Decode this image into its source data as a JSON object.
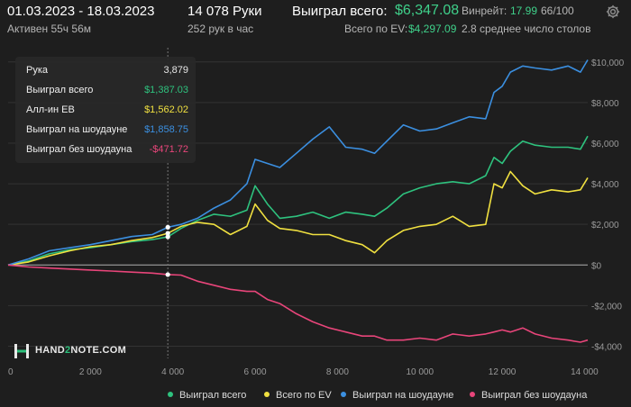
{
  "header": {
    "date_range": "01.03.2023 - 18.03.2023",
    "hands": "14 078 Руки",
    "won_total_label": "Выиграл всего:",
    "won_total_value": "$6,347.08",
    "winrate_label": "Винрейт:",
    "winrate_value": "17.99",
    "winrate_hands": "66/100",
    "active_time": "Активен 55ч 56м",
    "hands_per_hour": "252 рук в час",
    "ev_label": "Всего по EV:",
    "ev_value": "$4,297.09",
    "avg_tables": "2.8 среднее число столов",
    "settings_icon": "gear-icon"
  },
  "tooltip": {
    "rows": [
      {
        "label": "Рука",
        "value": "3,879",
        "color": "#e6e6e6"
      },
      {
        "label": "Выиграл всего",
        "value": "$1,387.03",
        "color": "#2ec27e"
      },
      {
        "label": "Алл-ин EB",
        "value": "$1,562.02",
        "color": "#f0e040"
      },
      {
        "label": "Выиграл на шоудауне",
        "value": "$1,858.75",
        "color": "#3b8fe0"
      },
      {
        "label": "Выиграл без шоудауна",
        "value": "-$471.72",
        "color": "#e8457a"
      }
    ]
  },
  "logo": {
    "part1": "HAND",
    "part2": "2",
    "part3": "NOTE.COM"
  },
  "legend": [
    {
      "label": "Выиграл всего",
      "color": "#2ec27e"
    },
    {
      "label": "Всего по EV",
      "color": "#f0e040"
    },
    {
      "label": "Выиграл на шоудауне",
      "color": "#3b8fe0"
    },
    {
      "label": "Выиграл без шоудауна",
      "color": "#e8457a"
    }
  ],
  "chart_data": {
    "type": "line",
    "xlim": [
      0,
      14078
    ],
    "ylim": [
      -4600,
      10700
    ],
    "x_ticks": [
      0,
      2000,
      4000,
      6000,
      8000,
      10000,
      12000,
      14000
    ],
    "x_tick_labels": [
      "0",
      "2 000",
      "4 000",
      "6 000",
      "8 000",
      "10 000",
      "12 000",
      "14 000"
    ],
    "y_ticks": [
      -4000,
      -2000,
      0,
      2000,
      4000,
      6000,
      8000,
      10000
    ],
    "y_tick_labels": [
      "-$4,000",
      "-$2,000",
      "$0",
      "$2,000",
      "$4,000",
      "$6,000",
      "$8,000",
      "$10,000"
    ],
    "grid": true,
    "legend_position": "bottom",
    "hover_x": 3879,
    "series": [
      {
        "name": "Выиграл всего",
        "color": "#2ec27e",
        "x": [
          0,
          500,
          1000,
          1500,
          2000,
          2500,
          3000,
          3500,
          3879,
          4200,
          4600,
          5000,
          5400,
          5800,
          6000,
          6300,
          6600,
          7000,
          7400,
          7800,
          8200,
          8600,
          8900,
          9200,
          9600,
          10000,
          10400,
          10800,
          11200,
          11600,
          11800,
          12000,
          12200,
          12500,
          12800,
          13200,
          13600,
          13900,
          14078
        ],
        "y": [
          0,
          200,
          550,
          750,
          850,
          1000,
          1150,
          1250,
          1387,
          1800,
          2200,
          2500,
          2400,
          2700,
          3900,
          3000,
          2300,
          2400,
          2600,
          2300,
          2600,
          2500,
          2400,
          2800,
          3500,
          3800,
          4000,
          4100,
          4000,
          4400,
          5300,
          5000,
          5600,
          6100,
          5900,
          5800,
          5800,
          5700,
          6347
        ]
      },
      {
        "name": "Всего по EV",
        "color": "#f0e040",
        "x": [
          0,
          500,
          1000,
          1500,
          2000,
          2500,
          3000,
          3500,
          3879,
          4200,
          4600,
          5000,
          5400,
          5800,
          6000,
          6300,
          6600,
          7000,
          7400,
          7800,
          8200,
          8600,
          8900,
          9200,
          9600,
          10000,
          10400,
          10800,
          11200,
          11600,
          11800,
          12000,
          12200,
          12500,
          12800,
          13200,
          13600,
          13900,
          14078
        ],
        "y": [
          0,
          150,
          450,
          700,
          900,
          1000,
          1200,
          1350,
          1562,
          1900,
          2100,
          2000,
          1500,
          1900,
          3000,
          2200,
          1800,
          1700,
          1500,
          1500,
          1200,
          1000,
          600,
          1200,
          1700,
          1900,
          2000,
          2400,
          1900,
          2000,
          4000,
          3800,
          4600,
          3900,
          3500,
          3700,
          3600,
          3700,
          4297
        ]
      },
      {
        "name": "Выиграл на шоудауне",
        "color": "#3b8fe0",
        "x": [
          0,
          500,
          1000,
          1500,
          2000,
          2500,
          3000,
          3500,
          3879,
          4200,
          4600,
          5000,
          5400,
          5800,
          6000,
          6300,
          6600,
          7000,
          7400,
          7800,
          8200,
          8600,
          8900,
          9200,
          9600,
          10000,
          10400,
          10800,
          11200,
          11600,
          11800,
          12000,
          12200,
          12500,
          12800,
          13200,
          13600,
          13900,
          14078
        ],
        "y": [
          0,
          300,
          700,
          850,
          1000,
          1200,
          1400,
          1500,
          1859,
          2000,
          2300,
          2800,
          3200,
          4000,
          5200,
          5000,
          4800,
          5500,
          6200,
          6800,
          5800,
          5700,
          5500,
          6100,
          6900,
          6600,
          6700,
          7000,
          7300,
          7200,
          8500,
          8800,
          9500,
          9800,
          9700,
          9600,
          9800,
          9500,
          10100
        ]
      },
      {
        "name": "Выиграл без шоудауна",
        "color": "#e8457a",
        "x": [
          0,
          500,
          1000,
          1500,
          2000,
          2500,
          3000,
          3500,
          3879,
          4200,
          4600,
          5000,
          5400,
          5800,
          6000,
          6300,
          6600,
          7000,
          7400,
          7800,
          8200,
          8600,
          8900,
          9200,
          9600,
          10000,
          10400,
          10800,
          11200,
          11600,
          11800,
          12000,
          12200,
          12500,
          12800,
          13200,
          13600,
          13900,
          14078
        ],
        "y": [
          0,
          -100,
          -150,
          -200,
          -250,
          -300,
          -350,
          -400,
          -472,
          -500,
          -800,
          -1000,
          -1200,
          -1300,
          -1300,
          -1700,
          -1900,
          -2400,
          -2800,
          -3100,
          -3300,
          -3500,
          -3500,
          -3700,
          -3700,
          -3600,
          -3700,
          -3400,
          -3500,
          -3400,
          -3300,
          -3200,
          -3300,
          -3100,
          -3400,
          -3600,
          -3700,
          -3800,
          -3700
        ]
      }
    ]
  }
}
